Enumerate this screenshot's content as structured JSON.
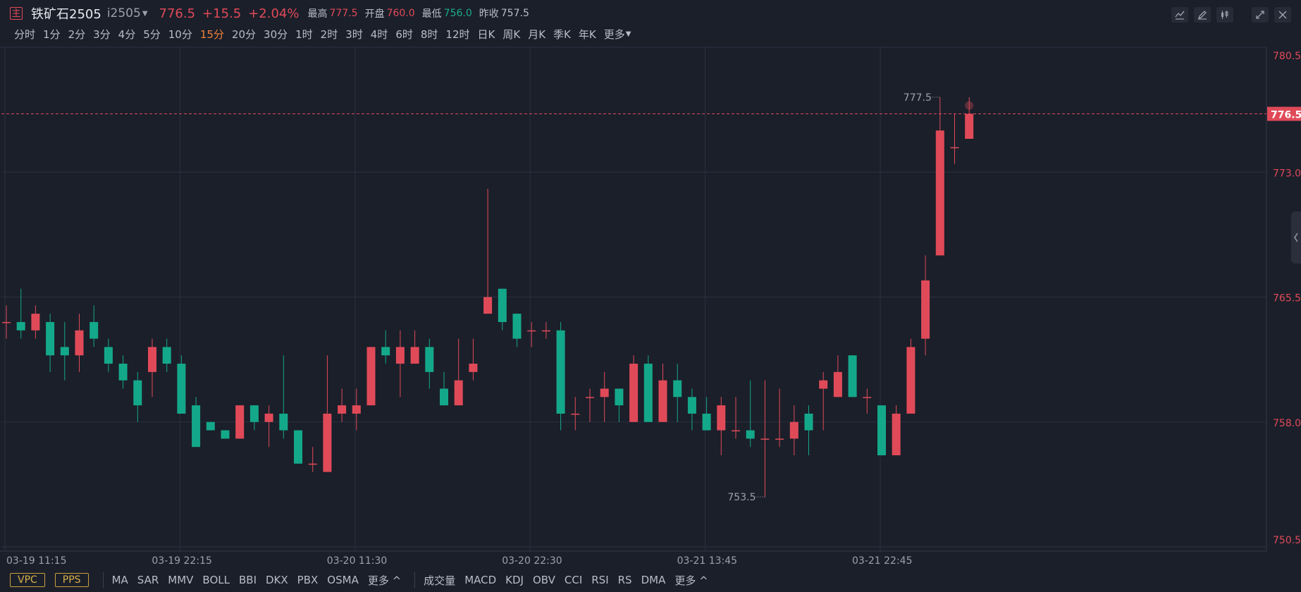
{
  "header": {
    "badge": "主",
    "title": "铁矿石2505",
    "code": "i2505",
    "price": "776.5",
    "change": "+15.5",
    "change_pct": "+2.04%",
    "high_label": "最高",
    "high": "777.5",
    "open_label": "开盘",
    "open": "760.0",
    "low_label": "最低",
    "low": "756.0",
    "prev_close_label": "昨收",
    "prev_close": "757.5"
  },
  "timeframes": [
    "分时",
    "1分",
    "2分",
    "3分",
    "4分",
    "5分",
    "10分",
    "15分",
    "20分",
    "30分",
    "1时",
    "2时",
    "3时",
    "4时",
    "6时",
    "8时",
    "12时",
    "日K",
    "周K",
    "月K",
    "季K",
    "年K",
    "更多"
  ],
  "active_timeframe": "15分",
  "toolbar": {
    "icons": [
      "line-tool-icon",
      "pencil-icon",
      "candle-style-icon",
      "expand-icon",
      "close-icon"
    ]
  },
  "indicators": {
    "main_boxes": [
      "VPC",
      "PPS"
    ],
    "main": [
      "MA",
      "SAR",
      "MMV",
      "BOLL",
      "BBI",
      "DKX",
      "PBX",
      "OSMA",
      "更多 ^"
    ],
    "sub": [
      "成交量",
      "MACD",
      "KDJ",
      "OBV",
      "CCI",
      "RSI",
      "RS",
      "DMA",
      "更多 ^"
    ]
  },
  "chart_data": {
    "type": "candlestick",
    "y_ticks": [
      "780.5",
      "773.0",
      "765.5",
      "758.0",
      "750.5"
    ],
    "ylim": [
      750.5,
      780.5
    ],
    "current_price": "776.5",
    "x_ticks": [
      "03-19 11:15",
      "03-19 22:15",
      "03-20 11:30",
      "03-20 22:30",
      "03-21 13:45",
      "03-21 22:45"
    ],
    "annotations": [
      {
        "label": "777.5",
        "type": "high"
      },
      {
        "label": "753.5",
        "type": "low"
      }
    ],
    "colors": {
      "up": "#e04a58",
      "down": "#14a88a",
      "grid": "#2a3140",
      "bg": "#1b1f2a"
    },
    "candles": [
      {
        "o": 764,
        "c": 764,
        "h": 765,
        "l": 763
      },
      {
        "o": 764,
        "c": 763.5,
        "h": 766,
        "l": 763
      },
      {
        "o": 763.5,
        "c": 764.5,
        "h": 765,
        "l": 763
      },
      {
        "o": 764,
        "c": 762,
        "h": 764.5,
        "l": 761
      },
      {
        "o": 762.5,
        "c": 762,
        "h": 764,
        "l": 760.5
      },
      {
        "o": 762,
        "c": 763.5,
        "h": 764.5,
        "l": 761
      },
      {
        "o": 764,
        "c": 763,
        "h": 765,
        "l": 762.5
      },
      {
        "o": 762.5,
        "c": 761.5,
        "h": 763,
        "l": 761
      },
      {
        "o": 761.5,
        "c": 760.5,
        "h": 762,
        "l": 760
      },
      {
        "o": 760.5,
        "c": 759,
        "h": 761,
        "l": 758
      },
      {
        "o": 761,
        "c": 762.5,
        "h": 763,
        "l": 759.5
      },
      {
        "o": 762.5,
        "c": 761.5,
        "h": 763,
        "l": 761
      },
      {
        "o": 761.5,
        "c": 758.5,
        "h": 762,
        "l": 758.5
      },
      {
        "o": 759,
        "c": 756.5,
        "h": 759.5,
        "l": 756.5
      },
      {
        "o": 758,
        "c": 757.5,
        "h": 758,
        "l": 757.5
      },
      {
        "o": 757.5,
        "c": 757,
        "h": 757.5,
        "l": 757
      },
      {
        "o": 757,
        "c": 759,
        "h": 759,
        "l": 757
      },
      {
        "o": 759,
        "c": 758,
        "h": 759,
        "l": 757.5
      },
      {
        "o": 758,
        "c": 758.5,
        "h": 759,
        "l": 756.5
      },
      {
        "o": 758.5,
        "c": 757.5,
        "h": 762,
        "l": 757
      },
      {
        "o": 757.5,
        "c": 755.5,
        "h": 757.5,
        "l": 755.5
      },
      {
        "o": 755.5,
        "c": 755.5,
        "h": 756.5,
        "l": 755
      },
      {
        "o": 755,
        "c": 758.5,
        "h": 762,
        "l": 755
      },
      {
        "o": 758.5,
        "c": 759,
        "h": 760,
        "l": 758
      },
      {
        "o": 758.5,
        "c": 759,
        "h": 760,
        "l": 757.5
      },
      {
        "o": 759,
        "c": 762.5,
        "h": 762.5,
        "l": 759
      },
      {
        "o": 762.5,
        "c": 762,
        "h": 763.5,
        "l": 761.5
      },
      {
        "o": 761.5,
        "c": 762.5,
        "h": 763.5,
        "l": 759.5
      },
      {
        "o": 761.5,
        "c": 762.5,
        "h": 763.5,
        "l": 761.5
      },
      {
        "o": 762.5,
        "c": 761,
        "h": 763,
        "l": 760
      },
      {
        "o": 760,
        "c": 759,
        "h": 761,
        "l": 759
      },
      {
        "o": 759,
        "c": 760.5,
        "h": 763,
        "l": 759
      },
      {
        "o": 761,
        "c": 761.5,
        "h": 763,
        "l": 760.5
      },
      {
        "o": 764.5,
        "c": 765.5,
        "h": 772,
        "l": 764.5
      },
      {
        "o": 766,
        "c": 764,
        "h": 766,
        "l": 763.5
      },
      {
        "o": 764.5,
        "c": 763,
        "h": 764.5,
        "l": 762.5
      },
      {
        "o": 763.5,
        "c": 763.5,
        "h": 764,
        "l": 762.5
      },
      {
        "o": 763.5,
        "c": 763.5,
        "h": 764,
        "l": 763
      },
      {
        "o": 763.5,
        "c": 758.5,
        "h": 764,
        "l": 757.5
      },
      {
        "o": 758.5,
        "c": 758.5,
        "h": 759.5,
        "l": 757.5
      },
      {
        "o": 759.5,
        "c": 759.5,
        "h": 760,
        "l": 758
      },
      {
        "o": 759.5,
        "c": 760,
        "h": 761,
        "l": 758
      },
      {
        "o": 760,
        "c": 759,
        "h": 760,
        "l": 758
      },
      {
        "o": 758,
        "c": 761.5,
        "h": 762,
        "l": 758
      },
      {
        "o": 761.5,
        "c": 758,
        "h": 762,
        "l": 758
      },
      {
        "o": 758,
        "c": 760.5,
        "h": 761.5,
        "l": 758
      },
      {
        "o": 760.5,
        "c": 759.5,
        "h": 761.5,
        "l": 758
      },
      {
        "o": 759.5,
        "c": 758.5,
        "h": 760,
        "l": 757.5
      },
      {
        "o": 758.5,
        "c": 757.5,
        "h": 759.5,
        "l": 757.5
      },
      {
        "o": 757.5,
        "c": 759,
        "h": 759.5,
        "l": 756
      },
      {
        "o": 757.5,
        "c": 757.5,
        "h": 759.5,
        "l": 757
      },
      {
        "o": 757.5,
        "c": 757,
        "h": 760.5,
        "l": 756.5
      },
      {
        "o": 757,
        "c": 757,
        "h": 760.5,
        "l": 753.5
      },
      {
        "o": 757,
        "c": 757,
        "h": 760,
        "l": 756.5
      },
      {
        "o": 757,
        "c": 758,
        "h": 759,
        "l": 756
      },
      {
        "o": 758.5,
        "c": 757.5,
        "h": 759,
        "l": 756
      },
      {
        "o": 760,
        "c": 760.5,
        "h": 761,
        "l": 757.5
      },
      {
        "o": 759.5,
        "c": 761,
        "h": 762,
        "l": 759.5
      },
      {
        "o": 762,
        "c": 759.5,
        "h": 762,
        "l": 759.5
      },
      {
        "o": 759.5,
        "c": 759.5,
        "h": 760,
        "l": 758.5
      },
      {
        "o": 759,
        "c": 756,
        "h": 759,
        "l": 756
      },
      {
        "o": 756,
        "c": 758.5,
        "h": 759,
        "l": 756
      },
      {
        "o": 758.5,
        "c": 762.5,
        "h": 763,
        "l": 758.5
      },
      {
        "o": 763,
        "c": 766.5,
        "h": 768,
        "l": 762
      },
      {
        "o": 768,
        "c": 775.5,
        "h": 777.5,
        "l": 768
      },
      {
        "o": 774.5,
        "c": 774.5,
        "h": 776.5,
        "l": 773.5
      },
      {
        "o": 775,
        "c": 776.5,
        "h": 777.5,
        "l": 775
      }
    ]
  }
}
